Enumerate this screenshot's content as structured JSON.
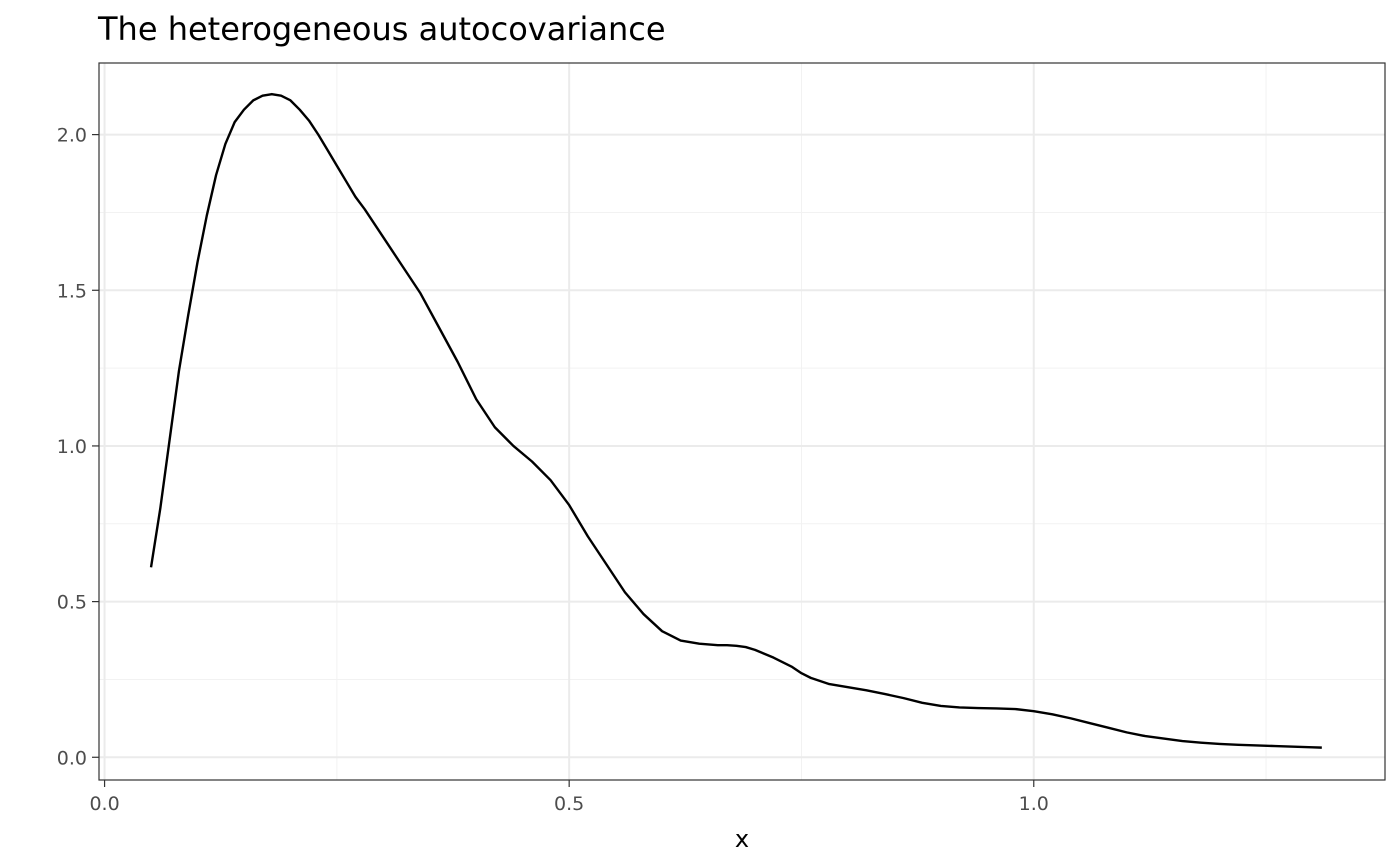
{
  "chart_data": {
    "type": "line",
    "title": "The heterogeneous autocovariance",
    "xlabel": "x",
    "ylabel": "",
    "xlim": [
      -0.006,
      1.378
    ],
    "ylim": [
      -0.073,
      2.23
    ],
    "x_ticks": [
      0.0,
      0.5,
      1.0
    ],
    "x_tick_labels": [
      "0.0",
      "0.5",
      "1.0"
    ],
    "x_minor_ticks": [
      0.25,
      0.75,
      1.25
    ],
    "y_ticks": [
      0.0,
      0.5,
      1.0,
      1.5,
      2.0
    ],
    "y_tick_labels": [
      "0.0",
      "0.5",
      "1.0",
      "1.5",
      "2.0"
    ],
    "y_minor_ticks": [
      0.25,
      0.75,
      1.25,
      1.75
    ],
    "grid": true,
    "legend": "none",
    "line_color": "#000000",
    "series": [
      {
        "x": [
          0.05,
          0.06,
          0.07,
          0.08,
          0.09,
          0.1,
          0.11,
          0.12,
          0.13,
          0.14,
          0.15,
          0.16,
          0.17,
          0.18,
          0.19,
          0.2,
          0.21,
          0.22,
          0.23,
          0.24,
          0.25,
          0.26,
          0.27,
          0.28,
          0.3,
          0.32,
          0.34,
          0.36,
          0.38,
          0.4,
          0.42,
          0.44,
          0.46,
          0.48,
          0.5,
          0.52,
          0.54,
          0.56,
          0.58,
          0.6,
          0.62,
          0.64,
          0.66,
          0.67,
          0.68,
          0.69,
          0.7,
          0.72,
          0.74,
          0.75,
          0.76,
          0.78,
          0.8,
          0.82,
          0.84,
          0.86,
          0.88,
          0.9,
          0.92,
          0.94,
          0.96,
          0.98,
          1.0,
          1.02,
          1.04,
          1.06,
          1.08,
          1.1,
          1.12,
          1.14,
          1.16,
          1.18,
          1.2,
          1.22,
          1.24,
          1.26,
          1.28,
          1.3,
          1.31
        ],
        "y": [
          0.61,
          0.8,
          1.02,
          1.24,
          1.42,
          1.59,
          1.74,
          1.87,
          1.97,
          2.04,
          2.08,
          2.11,
          2.125,
          2.13,
          2.125,
          2.11,
          2.08,
          2.045,
          2.0,
          1.95,
          1.9,
          1.85,
          1.8,
          1.76,
          1.67,
          1.58,
          1.49,
          1.38,
          1.27,
          1.15,
          1.06,
          1.0,
          0.95,
          0.89,
          0.81,
          0.71,
          0.62,
          0.53,
          0.46,
          0.405,
          0.375,
          0.365,
          0.36,
          0.36,
          0.358,
          0.354,
          0.345,
          0.32,
          0.29,
          0.27,
          0.255,
          0.235,
          0.225,
          0.215,
          0.203,
          0.19,
          0.175,
          0.165,
          0.16,
          0.158,
          0.157,
          0.155,
          0.148,
          0.138,
          0.125,
          0.11,
          0.095,
          0.08,
          0.068,
          0.06,
          0.052,
          0.047,
          0.043,
          0.04,
          0.038,
          0.036,
          0.034,
          0.032,
          0.031
        ]
      }
    ]
  }
}
